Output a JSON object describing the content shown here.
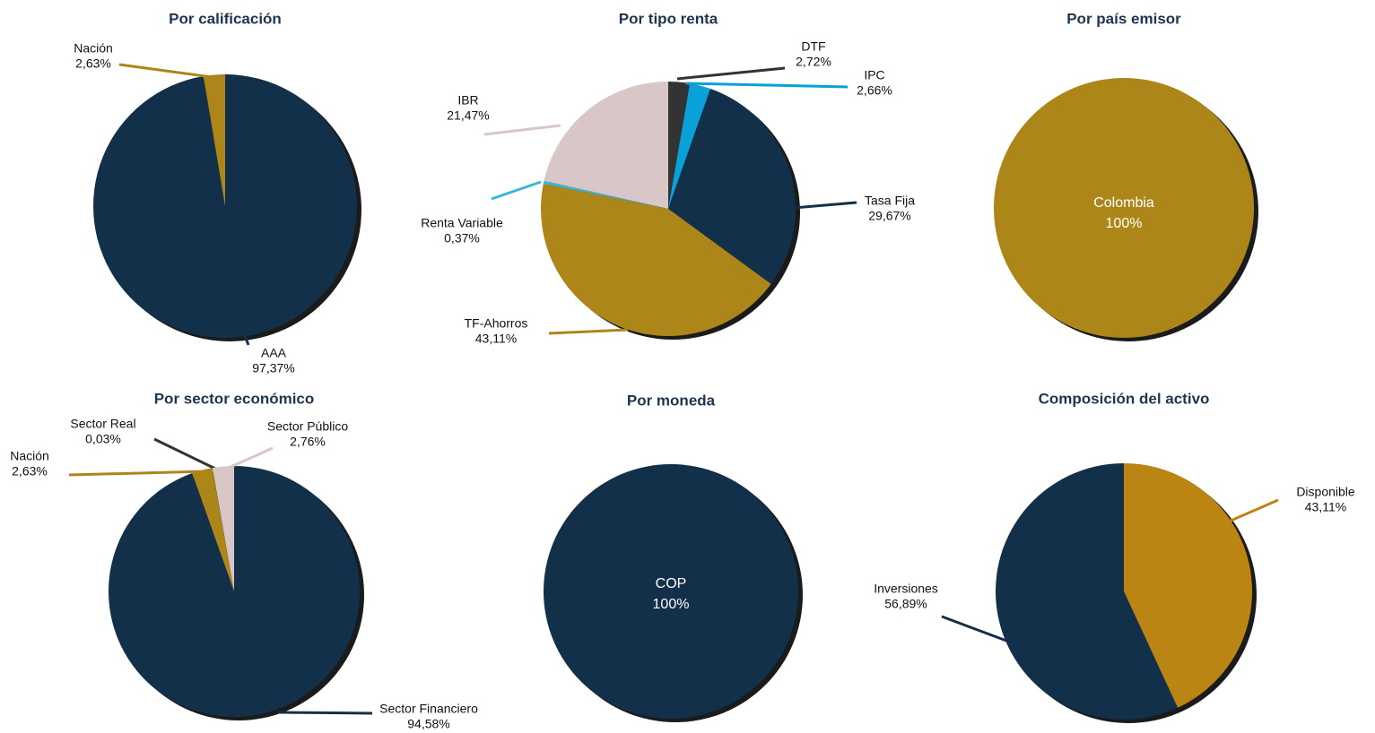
{
  "chart_data": [
    {
      "type": "pie",
      "title": "Por calificación",
      "categories": [
        "AAA",
        "Nación"
      ],
      "values": [
        97.37,
        2.63
      ],
      "value_labels": [
        "97,37%",
        "2,63%"
      ],
      "colors": [
        "#13304b",
        "#ad861a"
      ]
    },
    {
      "type": "pie",
      "title": "Por tipo renta",
      "categories": [
        "DTF",
        "IPC",
        "Tasa Fija",
        "TF-Ahorros",
        "Renta Variable",
        "IBR"
      ],
      "values": [
        2.72,
        2.66,
        29.67,
        43.11,
        0.37,
        21.47
      ],
      "value_labels": [
        "2,72%",
        "2,66%",
        "29,67%",
        "43,11%",
        "0,37%",
        "21,47%"
      ],
      "colors": [
        "#333333",
        "#0aa0d8",
        "#13304b",
        "#ad861a",
        "#3ab6d6",
        "#d9c6c6"
      ]
    },
    {
      "type": "pie",
      "title": "Por país emisor",
      "categories": [
        "Colombia"
      ],
      "values": [
        100
      ],
      "value_labels": [
        "100%"
      ],
      "colors": [
        "#ad861a"
      ]
    },
    {
      "type": "pie",
      "title": "Por sector económico",
      "categories": [
        "Sector Financiero",
        "Nación",
        "Sector Real",
        "Sector Público"
      ],
      "values": [
        94.58,
        2.63,
        0.03,
        2.76
      ],
      "value_labels": [
        "94,58%",
        "2,63%",
        "0,03%",
        "2,76%"
      ],
      "colors": [
        "#13304b",
        "#ad861a",
        "#333333",
        "#d9c6c6"
      ]
    },
    {
      "type": "pie",
      "title": "Por moneda",
      "categories": [
        "COP"
      ],
      "values": [
        100
      ],
      "value_labels": [
        "100%"
      ],
      "colors": [
        "#13304b"
      ]
    },
    {
      "type": "pie",
      "title": "Composición del activo",
      "categories": [
        "Disponible",
        "Inversiones"
      ],
      "values": [
        43.11,
        56.89
      ],
      "value_labels": [
        "43,11%",
        "56,89%"
      ],
      "colors": [
        "#bb8513",
        "#13304b"
      ]
    }
  ]
}
